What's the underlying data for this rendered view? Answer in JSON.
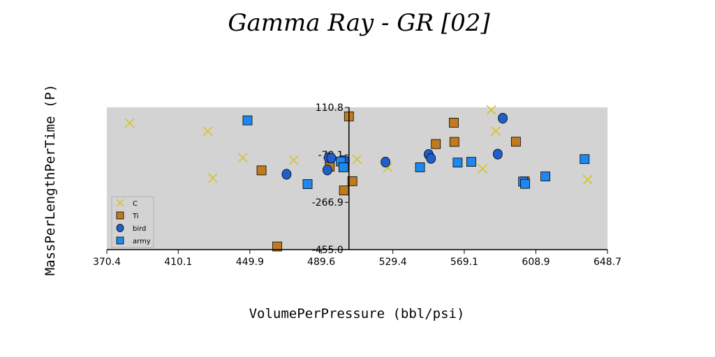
{
  "chart_data": {
    "type": "scatter",
    "title": "Gamma Ray - GR [02]",
    "xlabel": "VolumePerPressure (bbl/psi)",
    "ylabel": "MassPerLengthPerTime  (P)",
    "xlim": [
      370.4,
      648.7
    ],
    "ylim": [
      -455.0,
      110.8
    ],
    "x_ticks": [
      "370.4",
      "410.1",
      "449.9",
      "489.6",
      "529.4",
      "569.1",
      "608.9",
      "648.7"
    ],
    "y_ticks": [
      "110.8",
      "-78.1",
      "-266.9",
      "-455.0"
    ],
    "y_axis_crosses_x_at": 505.0,
    "plot_background": "#d3d3d3",
    "grid": false,
    "legend_position": "bottom-left",
    "series": [
      {
        "name": "C",
        "marker": "x",
        "color": "#d4c42a",
        "points": [
          [
            383.1,
            48.5
          ],
          [
            426.5,
            15.9
          ],
          [
            429.3,
            -170.1
          ],
          [
            446.0,
            -89.9
          ],
          [
            474.3,
            -99.1
          ],
          [
            509.5,
            -95.8
          ],
          [
            526.6,
            -128.7
          ],
          [
            579.3,
            -133.4
          ],
          [
            584.1,
            100.6
          ],
          [
            586.6,
            16.5
          ],
          [
            637.7,
            -176.6
          ]
        ]
      },
      {
        "name": "Ti",
        "marker": "square",
        "color": "#c07a20",
        "points": [
          [
            456.4,
            -139.9
          ],
          [
            465.1,
            -442.6
          ],
          [
            494.3,
            -125.0
          ],
          [
            502.2,
            -219.8
          ],
          [
            505.0,
            75.0
          ],
          [
            506.9,
            -182.7
          ],
          [
            563.6,
            -26.5
          ],
          [
            563.3,
            50.0
          ],
          [
            553.3,
            -35.0
          ],
          [
            597.8,
            -25.7
          ],
          [
            602.7,
            -183.6
          ]
        ]
      },
      {
        "name": "bird",
        "marker": "circle",
        "color": "#1f5fcc",
        "points": [
          [
            470.3,
            -155.2
          ],
          [
            493.0,
            -138.2
          ],
          [
            493.7,
            -89.4
          ],
          [
            495.2,
            -91.1
          ],
          [
            501.1,
            -101.1
          ],
          [
            502.7,
            -101.7
          ],
          [
            525.3,
            -106.7
          ],
          [
            549.3,
            -76.4
          ],
          [
            550.6,
            -92.2
          ],
          [
            587.7,
            -75.0
          ],
          [
            590.5,
            67.5
          ]
        ]
      },
      {
        "name": "army",
        "marker": "square",
        "color": "#1e88ee",
        "points": [
          [
            448.6,
            59.1
          ],
          [
            482.0,
            -194.5
          ],
          [
            500.5,
            -104.6
          ],
          [
            501.9,
            -127.7
          ],
          [
            544.5,
            -127.4
          ],
          [
            565.4,
            -108.8
          ],
          [
            573.0,
            -105.8
          ],
          [
            601.8,
            -184.4
          ],
          [
            602.9,
            -193.4
          ],
          [
            614.2,
            -163.9
          ],
          [
            636.0,
            -95.1
          ]
        ]
      }
    ]
  }
}
